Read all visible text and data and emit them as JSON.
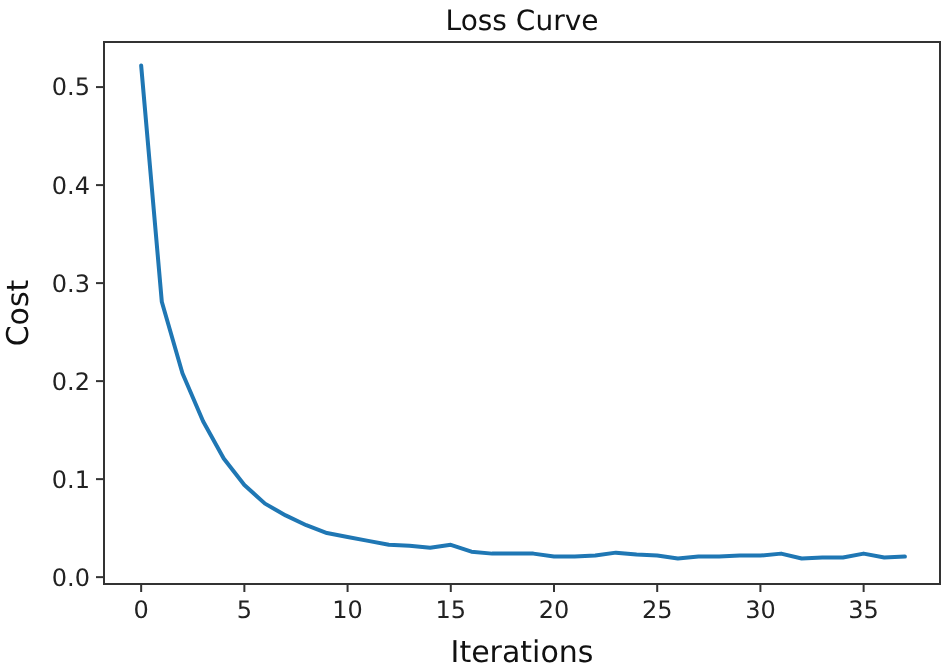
{
  "chart_data": {
    "type": "line",
    "title": "Loss Curve",
    "xlabel": "Iterations",
    "ylabel": "Cost",
    "x": [
      0,
      1,
      2,
      3,
      4,
      5,
      6,
      7,
      8,
      9,
      10,
      11,
      12,
      13,
      14,
      15,
      16,
      17,
      18,
      19,
      20,
      21,
      22,
      23,
      24,
      25,
      26,
      27,
      28,
      29,
      30,
      31,
      32,
      33,
      34,
      35,
      36,
      37
    ],
    "series": [
      {
        "color": "#1f77b4",
        "values": [
          0.522,
          0.281,
          0.208,
          0.159,
          0.121,
          0.094,
          0.075,
          0.063,
          0.053,
          0.045,
          0.041,
          0.037,
          0.033,
          0.032,
          0.03,
          0.033,
          0.026,
          0.024,
          0.024,
          0.024,
          0.021,
          0.021,
          0.022,
          0.025,
          0.023,
          0.022,
          0.019,
          0.021,
          0.021,
          0.022,
          0.022,
          0.024,
          0.019,
          0.02,
          0.02,
          0.024,
          0.02,
          0.021
        ]
      }
    ],
    "xlim": [
      -1.8,
      38.7
    ],
    "ylim": [
      -0.007,
      0.546
    ],
    "xticks": [
      0,
      5,
      10,
      15,
      20,
      25,
      30,
      35
    ],
    "yticks": [
      {
        "value": 0,
        "label": "0.0"
      },
      0.1,
      0.2,
      0.3,
      0.4,
      0.5
    ],
    "grid": false,
    "marker": "none",
    "line_style": "solid"
  }
}
